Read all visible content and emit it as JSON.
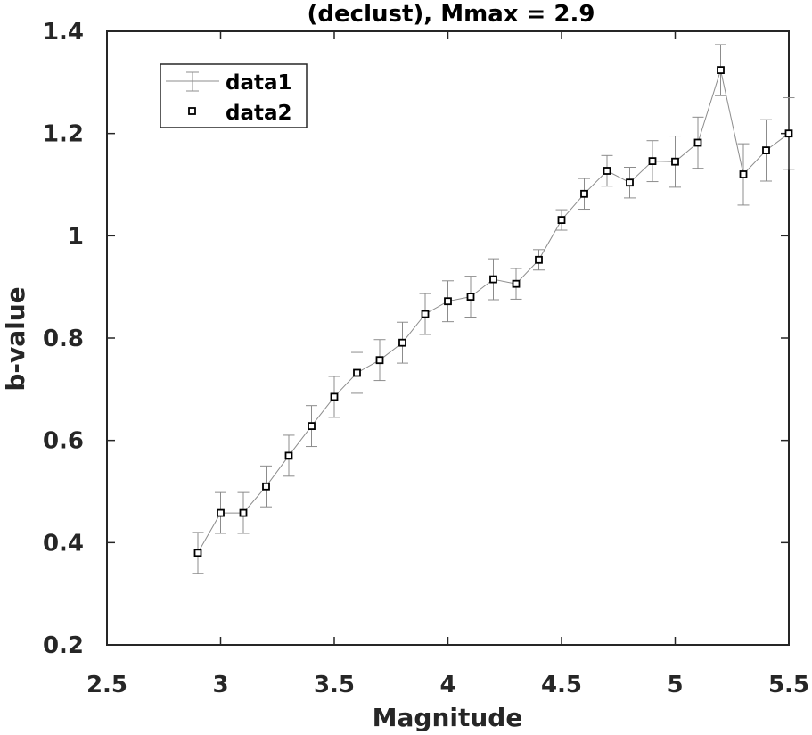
{
  "chart_data": {
    "type": "line",
    "title": "(declust),  Mmax = 2.9",
    "xlabel": "Magnitude",
    "ylabel": "b-value",
    "xlim": [
      2.5,
      5.5
    ],
    "ylim": [
      0.2,
      1.4
    ],
    "xticks": [
      "2.5",
      "3",
      "3.5",
      "4",
      "4.5",
      "5",
      "5.5"
    ],
    "yticks": [
      "0.2",
      "0.4",
      "0.6",
      "0.8",
      "1",
      "1.2",
      "1.4"
    ],
    "grid": false,
    "legend_position": "top-left",
    "x": [
      2.9,
      3.0,
      3.1,
      3.2,
      3.3,
      3.4,
      3.5,
      3.6,
      3.7,
      3.8,
      3.9,
      4.0,
      4.1,
      4.2,
      4.3,
      4.4,
      4.5,
      4.6,
      4.7,
      4.8,
      4.9,
      5.0,
      5.1,
      5.2,
      5.3,
      5.4,
      5.5
    ],
    "series": [
      {
        "name": "data1",
        "style": "line-with-errorbars",
        "color": "#8c8c8c",
        "values": [
          0.38,
          0.458,
          0.458,
          0.51,
          0.57,
          0.628,
          0.685,
          0.732,
          0.757,
          0.791,
          0.847,
          0.872,
          0.881,
          0.915,
          0.906,
          0.953,
          1.031,
          1.082,
          1.127,
          1.104,
          1.146,
          1.145,
          1.182,
          1.324,
          1.12,
          1.167,
          1.2
        ],
        "errors": [
          0.04,
          0.04,
          0.04,
          0.04,
          0.04,
          0.04,
          0.04,
          0.04,
          0.04,
          0.04,
          0.04,
          0.04,
          0.04,
          0.04,
          0.03,
          0.02,
          0.02,
          0.03,
          0.03,
          0.03,
          0.04,
          0.05,
          0.05,
          0.05,
          0.06,
          0.06,
          0.07
        ]
      },
      {
        "name": "data2",
        "style": "square-markers",
        "color": "#000000",
        "values": [
          0.38,
          0.458,
          0.458,
          0.51,
          0.57,
          0.628,
          0.685,
          0.732,
          0.757,
          0.791,
          0.847,
          0.872,
          0.881,
          0.915,
          0.906,
          0.953,
          1.031,
          1.082,
          1.127,
          1.104,
          1.146,
          1.145,
          1.182,
          1.324,
          1.12,
          1.167,
          1.2
        ]
      }
    ]
  }
}
